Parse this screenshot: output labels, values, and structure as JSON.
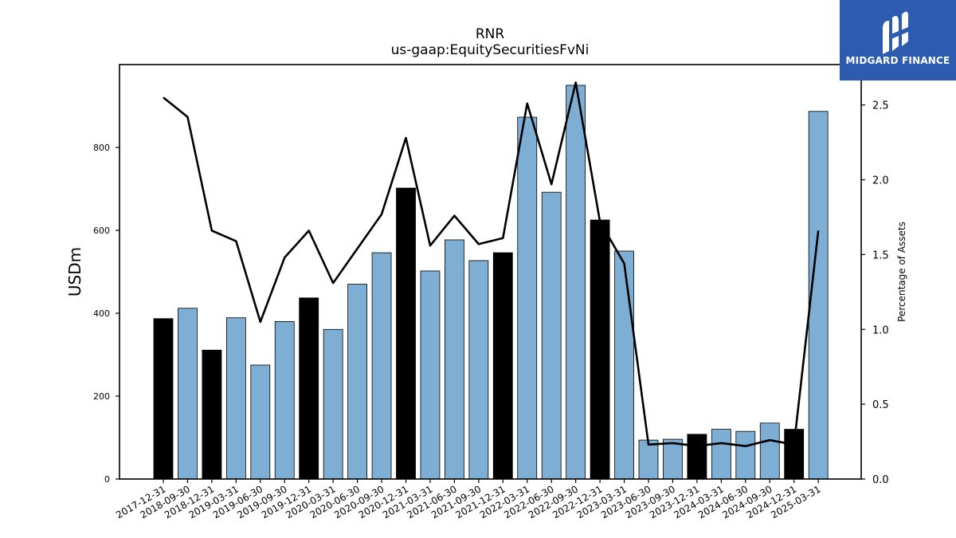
{
  "chart_data": {
    "type": "bar",
    "title": "RNR",
    "subtitle": "us-gaap:EquitySecuritiesFvNi",
    "ylabel": "USDm",
    "y2label": "Percentage of Assets",
    "ylim": [
      0,
      1000
    ],
    "y2lim": [
      0,
      2.77
    ],
    "yticks": [
      0,
      200,
      400,
      600,
      800
    ],
    "y2ticks": [
      0.0,
      0.5,
      1.0,
      1.5,
      2.0,
      2.5
    ],
    "categories": [
      "2017-12-31",
      "2018-09-30",
      "2018-12-31",
      "2019-03-31",
      "2019-06-30",
      "2019-09-30",
      "2019-12-31",
      "2020-03-31",
      "2020-06-30",
      "2020-09-30",
      "2020-12-31",
      "2021-03-31",
      "2021-06-30",
      "2021-09-30",
      "2021-12-31",
      "2022-03-31",
      "2022-06-30",
      "2022-09-30",
      "2022-12-31",
      "2023-03-31",
      "2023-06-30",
      "2023-09-30",
      "2023-12-31",
      "2024-03-31",
      "2024-06-30",
      "2024-09-30",
      "2024-12-31",
      "2025-03-31"
    ],
    "series": [
      {
        "kind": "bar",
        "values": [
          387,
          412,
          311,
          389,
          275,
          380,
          437,
          361,
          470,
          546,
          702,
          502,
          577,
          527,
          546,
          873,
          692,
          950,
          625,
          550,
          94,
          96,
          108,
          120,
          115,
          135,
          120,
          887
        ],
        "highlight": [
          true,
          false,
          true,
          false,
          false,
          false,
          true,
          false,
          false,
          false,
          true,
          false,
          false,
          false,
          true,
          false,
          false,
          false,
          true,
          false,
          false,
          false,
          true,
          false,
          false,
          false,
          true,
          false
        ],
        "color": "#7eaed3",
        "highlight_color": "#000000"
      },
      {
        "kind": "line",
        "axis": "right",
        "values": [
          2.55,
          2.42,
          1.66,
          1.59,
          1.05,
          1.48,
          1.66,
          1.31,
          1.54,
          1.77,
          2.28,
          1.56,
          1.76,
          1.57,
          1.61,
          2.51,
          1.97,
          2.65,
          1.72,
          1.44,
          0.23,
          0.24,
          0.22,
          0.24,
          0.22,
          0.26,
          0.23,
          1.66
        ],
        "color": "#000000"
      }
    ],
    "grid": false,
    "legend": "none"
  },
  "logo": {
    "text": "MIDGARD FINANCE",
    "background": "#2d5bb0"
  }
}
